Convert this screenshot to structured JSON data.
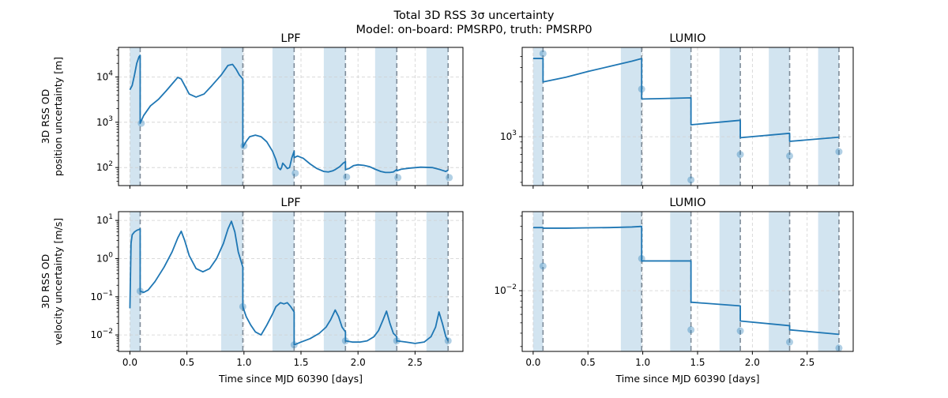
{
  "figure": {
    "title_line1": "Total 3D RSS 3σ uncertainty",
    "title_line2": "Model: on-board: PMSRP0, truth: PMSRP0"
  },
  "colors": {
    "line": "#1f77b4",
    "band": "#1f77b4",
    "dashed": "#7f8c99",
    "grid": "#d0d0d0"
  },
  "chart_data": [
    {
      "id": "lpf-position",
      "type": "line",
      "title": "LPF",
      "yscale": "log",
      "xlabel": "",
      "ylabel_lines": [
        "3D RSS OD",
        "position uncertainty [m]"
      ],
      "xlim": [
        -0.1,
        2.92
      ],
      "ylim": [
        40,
        45000
      ],
      "xticks": [
        0.0,
        0.5,
        1.0,
        1.5,
        2.0,
        2.5
      ],
      "xtick_labels": [],
      "yticks": [
        100,
        1000,
        10000
      ],
      "ytick_labels": [
        "10^2",
        "10^3",
        "10^4"
      ],
      "grid": true,
      "tracking_windows": [
        [
          0.0,
          0.09
        ],
        [
          0.8,
          0.99
        ],
        [
          1.25,
          1.44
        ],
        [
          1.7,
          1.89
        ],
        [
          2.15,
          2.34
        ],
        [
          2.6,
          2.79
        ]
      ],
      "dashed_lines": [
        0.09,
        0.99,
        1.44,
        1.89,
        2.34,
        2.79
      ],
      "markers": [
        {
          "x": 0.1,
          "y": 950
        },
        {
          "x": 1.0,
          "y": 300
        },
        {
          "x": 1.45,
          "y": 75
        },
        {
          "x": 1.9,
          "y": 62
        },
        {
          "x": 2.35,
          "y": 60
        },
        {
          "x": 2.8,
          "y": 60
        }
      ],
      "series": [
        {
          "x": [
            0.0,
            0.02,
            0.04,
            0.06,
            0.08,
            0.09,
            0.09,
            0.12,
            0.18,
            0.25,
            0.32,
            0.38,
            0.42,
            0.45,
            0.48,
            0.52,
            0.58,
            0.65,
            0.72,
            0.8,
            0.86,
            0.9,
            0.93,
            0.96,
            0.99,
            0.99,
            1.02,
            1.05,
            1.1,
            1.15,
            1.2,
            1.25,
            1.28,
            1.3,
            1.32,
            1.33,
            1.34,
            1.36,
            1.38,
            1.4,
            1.42,
            1.44,
            1.44,
            1.47,
            1.52,
            1.58,
            1.64,
            1.7,
            1.74,
            1.78,
            1.8,
            1.84,
            1.87,
            1.89,
            1.89,
            1.92,
            1.96,
            2.0,
            2.05,
            2.1,
            2.15,
            2.2,
            2.24,
            2.28,
            2.31,
            2.34,
            2.34,
            2.38,
            2.45,
            2.55,
            2.65,
            2.72,
            2.77,
            2.79
          ],
          "y": [
            5200,
            6500,
            11000,
            20000,
            28000,
            30000,
            950,
            1400,
            2300,
            3200,
            5000,
            7500,
            9800,
            9000,
            6500,
            4200,
            3600,
            4200,
            6500,
            11000,
            18000,
            19000,
            15000,
            11000,
            9000,
            280,
            380,
            480,
            520,
            480,
            370,
            230,
            150,
            100,
            90,
            100,
            125,
            110,
            95,
            100,
            165,
            230,
            165,
            180,
            160,
            120,
            95,
            82,
            80,
            85,
            90,
            105,
            125,
            135,
            90,
            95,
            110,
            115,
            112,
            105,
            92,
            82,
            78,
            78,
            80,
            90,
            85,
            92,
            97,
            102,
            100,
            90,
            82,
            88
          ]
        }
      ]
    },
    {
      "id": "lumio-position",
      "type": "line",
      "title": "LUMIO",
      "yscale": "log",
      "xlabel": "",
      "ylabel_lines": [],
      "xlim": [
        -0.1,
        2.92
      ],
      "ylim": [
        375,
        6000
      ],
      "xticks": [
        0.0,
        0.5,
        1.0,
        1.5,
        2.0,
        2.5
      ],
      "xtick_labels": [],
      "yticks": [
        1000
      ],
      "ytick_labels": [
        "10^3"
      ],
      "grid": true,
      "tracking_windows": [
        [
          0.0,
          0.09
        ],
        [
          0.8,
          0.99
        ],
        [
          1.25,
          1.44
        ],
        [
          1.7,
          1.89
        ],
        [
          2.15,
          2.34
        ],
        [
          2.6,
          2.79
        ]
      ],
      "dashed_lines": [
        0.09,
        0.99,
        1.44,
        1.89,
        2.34,
        2.79
      ],
      "markers": [
        {
          "x": 0.09,
          "y": 5300
        },
        {
          "x": 0.99,
          "y": 2600
        },
        {
          "x": 1.44,
          "y": 420
        },
        {
          "x": 1.89,
          "y": 700
        },
        {
          "x": 2.34,
          "y": 680
        },
        {
          "x": 2.79,
          "y": 740
        }
      ],
      "series": [
        {
          "x": [
            0.0,
            0.09,
            0.09,
            0.3,
            0.5,
            0.7,
            0.9,
            0.99,
            0.99,
            1.2,
            1.44,
            1.44,
            1.89,
            1.89,
            2.34,
            2.34,
            2.79
          ],
          "y": [
            4800,
            4800,
            3000,
            3300,
            3700,
            4100,
            4550,
            4800,
            2130,
            2150,
            2180,
            1270,
            1390,
            980,
            1070,
            910,
            990
          ]
        }
      ]
    },
    {
      "id": "lpf-velocity",
      "type": "line",
      "title": "LPF",
      "yscale": "log",
      "xlabel": "Time since MJD 60390 [days]",
      "ylabel_lines": [
        "3D RSS OD",
        "velocity uncertainty [m/s]"
      ],
      "xlim": [
        -0.1,
        2.92
      ],
      "ylim": [
        0.0037,
        17
      ],
      "xticks": [
        0.0,
        0.5,
        1.0,
        1.5,
        2.0,
        2.5
      ],
      "xtick_labels": [
        "0.0",
        "0.5",
        "1.0",
        "1.5",
        "2.0",
        "2.5"
      ],
      "yticks": [
        0.01,
        0.1,
        1,
        10
      ],
      "ytick_labels": [
        "10^-2",
        "10^-1",
        "10^0",
        "10^1"
      ],
      "grid": true,
      "tracking_windows": [
        [
          0.0,
          0.09
        ],
        [
          0.8,
          0.99
        ],
        [
          1.25,
          1.44
        ],
        [
          1.7,
          1.89
        ],
        [
          2.15,
          2.34
        ],
        [
          2.6,
          2.79
        ]
      ],
      "dashed_lines": [
        0.09,
        0.99,
        1.44,
        1.89,
        2.34,
        2.79
      ],
      "markers": [
        {
          "x": 0.09,
          "y": 0.14
        },
        {
          "x": 0.99,
          "y": 0.055
        },
        {
          "x": 1.44,
          "y": 0.0055
        },
        {
          "x": 1.89,
          "y": 0.007
        },
        {
          "x": 2.34,
          "y": 0.007
        },
        {
          "x": 2.79,
          "y": 0.007
        }
      ],
      "series": [
        {
          "x": [
            0.0,
            0.01,
            0.02,
            0.04,
            0.06,
            0.08,
            0.09,
            0.09,
            0.12,
            0.16,
            0.22,
            0.3,
            0.37,
            0.42,
            0.45,
            0.48,
            0.52,
            0.58,
            0.64,
            0.7,
            0.76,
            0.82,
            0.86,
            0.89,
            0.92,
            0.95,
            0.99,
            0.99,
            1.02,
            1.06,
            1.1,
            1.15,
            1.2,
            1.25,
            1.28,
            1.32,
            1.35,
            1.38,
            1.41,
            1.44,
            1.44,
            1.5,
            1.58,
            1.66,
            1.72,
            1.76,
            1.8,
            1.83,
            1.86,
            1.89,
            1.89,
            1.95,
            2.02,
            2.08,
            2.14,
            2.18,
            2.22,
            2.25,
            2.28,
            2.31,
            2.34,
            2.34,
            2.42,
            2.5,
            2.58,
            2.64,
            2.68,
            2.71,
            2.74,
            2.77,
            2.79
          ],
          "y": [
            0.05,
            2.5,
            4.2,
            5.0,
            5.5,
            5.8,
            6.0,
            0.14,
            0.13,
            0.15,
            0.25,
            0.6,
            1.5,
            3.5,
            5.2,
            3.0,
            1.2,
            0.55,
            0.45,
            0.55,
            1.0,
            2.5,
            6.0,
            9.5,
            5.0,
            1.5,
            0.6,
            0.055,
            0.03,
            0.018,
            0.012,
            0.01,
            0.018,
            0.035,
            0.055,
            0.07,
            0.065,
            0.07,
            0.055,
            0.04,
            0.0055,
            0.0065,
            0.008,
            0.011,
            0.016,
            0.025,
            0.045,
            0.03,
            0.016,
            0.012,
            0.007,
            0.0065,
            0.0065,
            0.007,
            0.009,
            0.013,
            0.025,
            0.042,
            0.02,
            0.011,
            0.009,
            0.007,
            0.0065,
            0.006,
            0.0065,
            0.009,
            0.016,
            0.04,
            0.02,
            0.009,
            0.007
          ]
        }
      ]
    },
    {
      "id": "lumio-velocity",
      "type": "line",
      "title": "LUMIO",
      "yscale": "log",
      "xlabel": "Time since MJD 60390 [days]",
      "ylabel_lines": [],
      "xlim": [
        -0.1,
        2.92
      ],
      "ylim": [
        0.0027,
        0.055
      ],
      "xticks": [
        0.0,
        0.5,
        1.0,
        1.5,
        2.0,
        2.5
      ],
      "xtick_labels": [
        "0.0",
        "0.5",
        "1.0",
        "1.5",
        "2.0",
        "2.5"
      ],
      "yticks": [
        0.01
      ],
      "ytick_labels": [
        "10^-2"
      ],
      "grid": true,
      "tracking_windows": [
        [
          0.0,
          0.09
        ],
        [
          0.8,
          0.99
        ],
        [
          1.25,
          1.44
        ],
        [
          1.7,
          1.89
        ],
        [
          2.15,
          2.34
        ],
        [
          2.6,
          2.79
        ]
      ],
      "dashed_lines": [
        0.09,
        0.99,
        1.44,
        1.89,
        2.34,
        2.79
      ],
      "markers": [
        {
          "x": 0.09,
          "y": 0.017
        },
        {
          "x": 0.99,
          "y": 0.02
        },
        {
          "x": 1.44,
          "y": 0.0043
        },
        {
          "x": 1.89,
          "y": 0.0042
        },
        {
          "x": 2.34,
          "y": 0.0033
        },
        {
          "x": 2.79,
          "y": 0.0029
        }
      ],
      "series": [
        {
          "x": [
            0.0,
            0.09,
            0.09,
            0.3,
            0.5,
            0.7,
            0.9,
            0.99,
            0.99,
            1.2,
            1.44,
            1.44,
            1.89,
            1.89,
            2.34,
            2.34,
            2.79
          ],
          "y": [
            0.039,
            0.039,
            0.0385,
            0.0385,
            0.0388,
            0.039,
            0.0395,
            0.04,
            0.019,
            0.019,
            0.019,
            0.0078,
            0.0072,
            0.0052,
            0.0047,
            0.0043,
            0.0039
          ]
        }
      ]
    }
  ]
}
